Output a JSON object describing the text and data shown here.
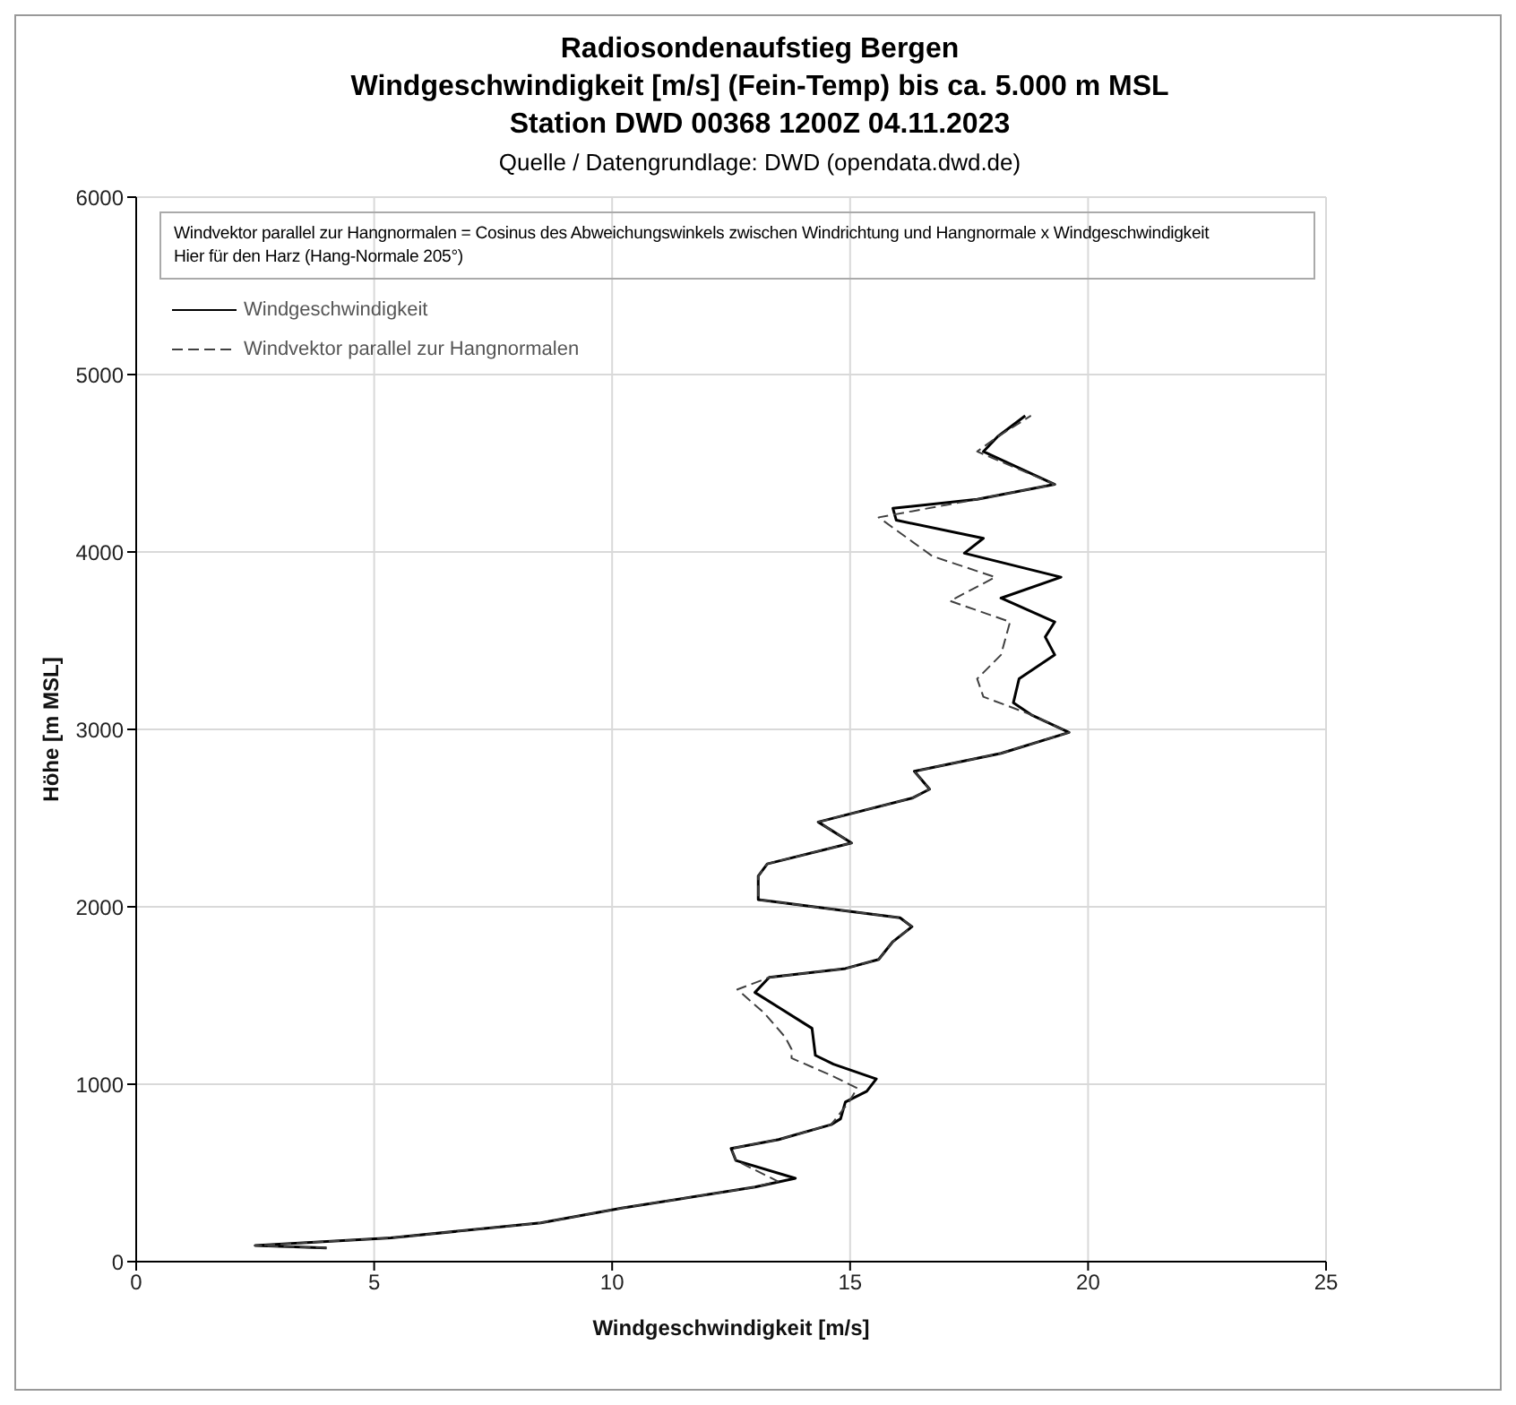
{
  "chart_data": {
    "type": "line",
    "title": "Radiosondenaufstieg Bergen\nWindgeschwindigkeit [m/s] (Fein-Temp) bis ca. 5.000 m MSL\nStation DWD 00368 1200Z 04.11.2023",
    "xlabel": "Windgeschwindigkeit [m/s]",
    "ylabel": "Höhe [m MSL]",
    "annotations": [
      "Quelle / Datengrundlage: DWD (opendata.dwd.de)",
      "Windvektor parallel zur Hangnormalen = Cosinus des Abweichungswinkels zwischen Windrichtung und Hangnormale x Windgeschwindigkeit",
      "Hier für den Harz (Hang-Normale 205°)"
    ],
    "xlim": [
      0,
      25
    ],
    "xticks": [
      0,
      5,
      10,
      15,
      20,
      25
    ],
    "ylim": [
      0,
      6000
    ],
    "yticks": [
      0,
      1000,
      2000,
      3000,
      4000,
      5000,
      6000
    ],
    "grid": true,
    "legend": "top left",
    "marker": "none",
    "series": [
      {
        "name": "Windgeschwindigkeit",
        "color": "#000000",
        "line_style": "solid",
        "x": [
          4.0,
          2.5,
          5.35,
          8.5,
          10.2,
          13.0,
          13.85,
          12.6,
          12.5,
          13.5,
          14.6,
          14.8,
          14.9,
          15.35,
          15.55,
          14.65,
          14.27,
          14.2,
          13.5,
          13.0,
          13.3,
          14.9,
          15.6,
          15.9,
          16.3,
          16.05,
          13.07,
          13.07,
          13.26,
          15.03,
          14.33,
          16.3,
          16.67,
          16.35,
          18.17,
          19.6,
          18.8,
          18.43,
          18.55,
          19.3,
          19.1,
          19.3,
          18.17,
          19.43,
          17.4,
          17.8,
          15.97,
          15.9,
          17.67,
          19.3,
          17.8,
          18.1,
          18.68
        ],
        "values": [
          77,
          91,
          134,
          218,
          302,
          420,
          470,
          570,
          638,
          688,
          772,
          805,
          900,
          960,
          1030,
          1113,
          1163,
          1315,
          1433,
          1517,
          1602,
          1652,
          1703,
          1804,
          1888,
          1938,
          2040,
          2174,
          2242,
          2360,
          2478,
          2612,
          2663,
          2764,
          2865,
          2983,
          3083,
          3150,
          3285,
          3420,
          3521,
          3606,
          3740,
          3858,
          3993,
          4077,
          4179,
          4246,
          4297,
          4381,
          4566,
          4650,
          4768
        ]
      },
      {
        "name": "Windvektor parallel zur Hangnormalen",
        "color": "#404040",
        "line_style": "dashed",
        "x": [
          4.0,
          2.5,
          5.35,
          8.5,
          10.2,
          13.0,
          13.48,
          12.6,
          12.5,
          13.5,
          14.6,
          14.96,
          15.15,
          14.6,
          13.77,
          13.77,
          13.64,
          13.2,
          12.63,
          13.3,
          14.9,
          15.6,
          15.9,
          16.3,
          16.05,
          13.07,
          13.07,
          13.26,
          15.03,
          14.33,
          16.3,
          16.67,
          16.35,
          18.17,
          19.6,
          18.8,
          17.8,
          17.67,
          18.17,
          18.36,
          17.1,
          18.05,
          16.73,
          15.6,
          17.67,
          19.3,
          17.67,
          18.1,
          18.8
        ],
        "values": [
          77,
          91,
          134,
          218,
          302,
          420,
          453,
          570,
          638,
          688,
          772,
          894,
          978,
          1050,
          1147,
          1197,
          1264,
          1400,
          1534,
          1602,
          1652,
          1703,
          1804,
          1888,
          1938,
          2040,
          2174,
          2242,
          2360,
          2478,
          2612,
          2663,
          2764,
          2865,
          2983,
          3083,
          3184,
          3285,
          3420,
          3606,
          3724,
          3858,
          3976,
          4195,
          4297,
          4381,
          4566,
          4650,
          4768
        ]
      }
    ]
  }
}
